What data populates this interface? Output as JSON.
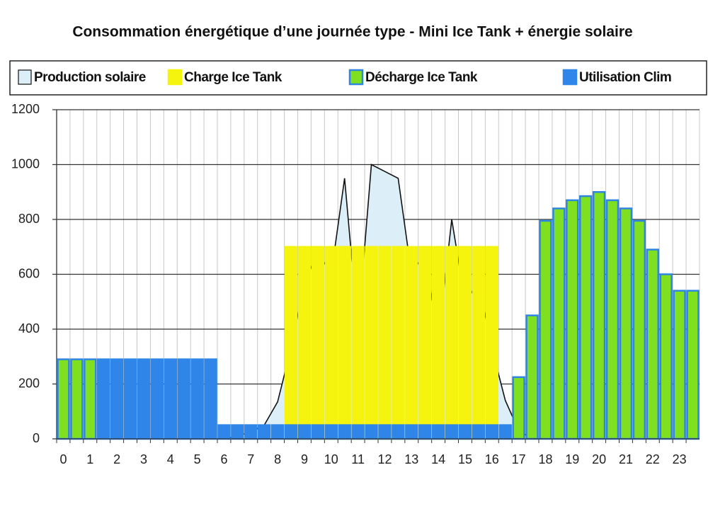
{
  "chart_data": {
    "type": "bar",
    "title": "Consommation énergétique d’une journée type - Mini Ice Tank + énergie solaire",
    "categories": [
      "0",
      null,
      "1",
      null,
      "2",
      null,
      "3",
      null,
      "4",
      null,
      "5",
      null,
      "6",
      null,
      "7",
      null,
      "8",
      null,
      "9",
      null,
      "10",
      null,
      "11",
      null,
      "12",
      null,
      "13",
      null,
      "14",
      null,
      "15",
      null,
      "16",
      null,
      "17",
      null,
      "18",
      null,
      "19",
      null,
      "20",
      null,
      "21",
      null,
      "22",
      null,
      "23",
      null
    ],
    "series": [
      {
        "name": "Production solaire",
        "kind": "area",
        "color": "#dceef8",
        "stroke": "#111111",
        "values": [
          null,
          null,
          null,
          null,
          null,
          null,
          null,
          null,
          null,
          null,
          null,
          null,
          0,
          10,
          25,
          50,
          135,
          330,
          570,
          680,
          600,
          950,
          400,
          1000,
          975,
          950,
          600,
          680,
          360,
          800,
          500,
          570,
          330,
          140,
          30,
          0,
          null,
          null,
          null,
          null,
          null,
          null,
          null,
          null,
          null,
          null,
          null,
          null
        ]
      },
      {
        "name": "Charge Ice Tank",
        "kind": "bar",
        "color": "#f4f40e",
        "stroke": "#f4f40e",
        "values": [
          null,
          null,
          null,
          null,
          null,
          null,
          null,
          null,
          null,
          null,
          null,
          null,
          null,
          null,
          null,
          null,
          null,
          700,
          700,
          700,
          700,
          700,
          700,
          700,
          700,
          700,
          700,
          700,
          700,
          700,
          700,
          700,
          700,
          null,
          null,
          null,
          null,
          null,
          null,
          null,
          null,
          null,
          null,
          null,
          null,
          null,
          null,
          null
        ]
      },
      {
        "name": "Décharge Ice Tank",
        "kind": "bar",
        "color": "#7fe022",
        "stroke": "#2f86e0",
        "values": [
          290,
          290,
          290,
          null,
          null,
          null,
          null,
          null,
          null,
          null,
          null,
          null,
          null,
          null,
          null,
          null,
          null,
          null,
          null,
          null,
          null,
          null,
          null,
          null,
          null,
          null,
          null,
          null,
          null,
          null,
          null,
          null,
          null,
          null,
          225,
          450,
          795,
          840,
          870,
          885,
          900,
          870,
          840,
          795,
          690,
          600,
          540,
          540
        ]
      },
      {
        "name": "Utilisation Clim",
        "kind": "bar",
        "color": "#2f86e8",
        "stroke": "#2f86e8",
        "values": [
          null,
          null,
          null,
          290,
          290,
          290,
          290,
          290,
          290,
          290,
          290,
          290,
          50,
          50,
          50,
          50,
          50,
          50,
          50,
          50,
          50,
          50,
          50,
          50,
          50,
          50,
          50,
          50,
          50,
          50,
          50,
          50,
          50,
          50,
          null,
          null,
          null,
          null,
          null,
          null,
          null,
          null,
          null,
          null,
          null,
          null,
          null,
          null
        ]
      }
    ],
    "ylim": [
      0,
      1200
    ],
    "yticks": [
      0,
      200,
      400,
      600,
      800,
      1000,
      1200
    ],
    "grid": true
  }
}
